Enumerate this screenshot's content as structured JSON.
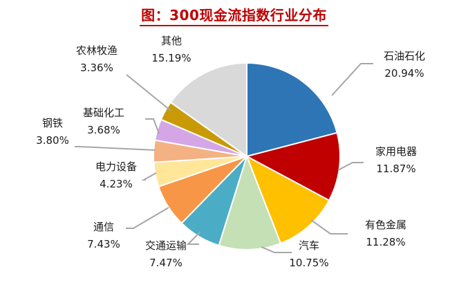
{
  "chart_data": {
    "type": "pie",
    "title": "图：300现金流指数行业分布",
    "slices": [
      {
        "label": "石油石化",
        "value": 20.94,
        "display": "20.94%",
        "color": "#2e75b6"
      },
      {
        "label": "家用电器",
        "value": 11.87,
        "display": "11.87%",
        "color": "#c00000"
      },
      {
        "label": "有色金属",
        "value": 11.28,
        "display": "11.28%",
        "color": "#ffc000"
      },
      {
        "label": "汽车",
        "value": 10.75,
        "display": "10.75%",
        "color": "#c5e0b4"
      },
      {
        "label": "交通运输",
        "value": 7.47,
        "display": "7.47%",
        "color": "#4bacc6"
      },
      {
        "label": "通信",
        "value": 7.43,
        "display": "7.43%",
        "color": "#f79646"
      },
      {
        "label": "电力设备",
        "value": 4.23,
        "display": "4.23%",
        "color": "#ffe699"
      },
      {
        "label": "钢铁",
        "value": 3.8,
        "display": "3.80%",
        "color": "#f4b183"
      },
      {
        "label": "基础化工",
        "value": 3.68,
        "display": "3.68%",
        "color": "#d5a6e6"
      },
      {
        "label": "农林牧渔",
        "value": 3.36,
        "display": "3.36%",
        "color": "#c99a06"
      },
      {
        "label": "其他",
        "value": 15.19,
        "display": "15.19%",
        "color": "#d9d9d9"
      }
    ],
    "legend": "none"
  }
}
